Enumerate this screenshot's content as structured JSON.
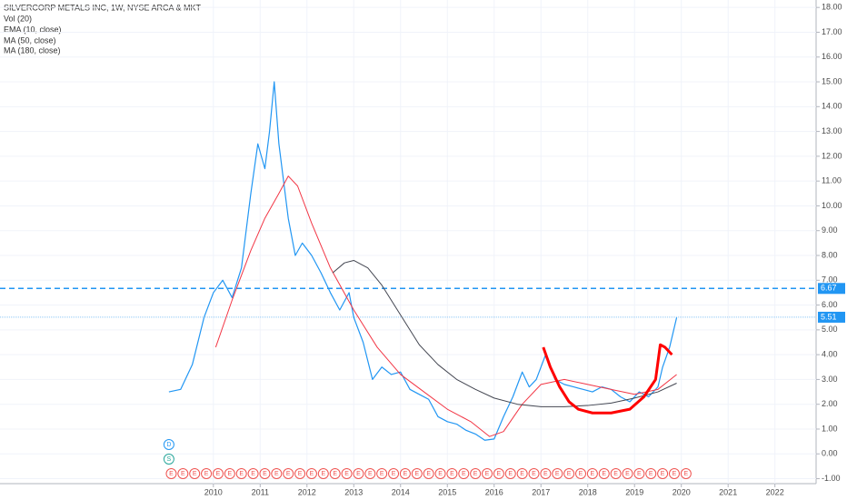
{
  "chart_data": {
    "type": "line",
    "title": "SILVERCORP METALS INC, 1W, NYSE ARCA & MKT",
    "volume_label": "Vol (20)",
    "xlim": [
      2005.44,
      2022.88
    ],
    "xticks": [
      2010,
      2011,
      2012,
      2013,
      2014,
      2015,
      2016,
      2017,
      2018,
      2019,
      2020,
      2021,
      2022
    ],
    "ylim": [
      -1.2,
      18.3
    ],
    "yticks": [
      {
        "value": -1,
        "label": "-1.00"
      },
      {
        "value": 0,
        "label": "0.00"
      },
      {
        "value": 1,
        "label": "1.00"
      },
      {
        "value": 2,
        "label": "2.00"
      },
      {
        "value": 3,
        "label": "3.00"
      },
      {
        "value": 4,
        "label": "4.00"
      },
      {
        "value": 5,
        "label": "5.00"
      },
      {
        "value": 6,
        "label": "6.00"
      },
      {
        "value": 7,
        "label": "7.00"
      },
      {
        "value": 8,
        "label": "8.00"
      },
      {
        "value": 9,
        "label": "9.00"
      },
      {
        "value": 10,
        "label": "10.00"
      },
      {
        "value": 11,
        "label": "11.00"
      },
      {
        "value": 12,
        "label": "12.00"
      },
      {
        "value": 13,
        "label": "13.00"
      },
      {
        "value": 14,
        "label": "14.00"
      },
      {
        "value": 15,
        "label": "15.00"
      },
      {
        "value": 16,
        "label": "16.00"
      },
      {
        "value": 17,
        "label": "17.00"
      },
      {
        "value": 18,
        "label": "18.00"
      }
    ],
    "grid": true,
    "series": [
      {
        "name": "EMA (10, close)",
        "color": "#2196f3",
        "x": [
          2009.05,
          2009.3,
          2009.55,
          2009.8,
          2010.0,
          2010.2,
          2010.4,
          2010.6,
          2010.8,
          2010.95,
          2011.1,
          2011.2,
          2011.3,
          2011.4,
          2011.5,
          2011.6,
          2011.75,
          2011.9,
          2012.1,
          2012.3,
          2012.5,
          2012.7,
          2012.9,
          2013.0,
          2013.2,
          2013.4,
          2013.6,
          2013.8,
          2014.0,
          2014.2,
          2014.4,
          2014.6,
          2014.8,
          2015.0,
          2015.2,
          2015.4,
          2015.6,
          2015.8,
          2016.0,
          2016.2,
          2016.4,
          2016.6,
          2016.75,
          2016.9,
          2017.1,
          2017.3,
          2017.5,
          2017.7,
          2017.9,
          2018.1,
          2018.3,
          2018.5,
          2018.7,
          2018.9,
          2019.1,
          2019.3,
          2019.5,
          2019.6,
          2019.75,
          2019.9
        ],
        "values": [
          2.5,
          2.6,
          3.6,
          5.5,
          6.5,
          7.0,
          6.3,
          7.5,
          10.5,
          12.5,
          11.5,
          13.0,
          15.0,
          12.5,
          11.0,
          9.5,
          8.0,
          8.5,
          8.0,
          7.3,
          6.5,
          5.8,
          6.5,
          5.5,
          4.5,
          3.0,
          3.5,
          3.2,
          3.3,
          2.6,
          2.4,
          2.2,
          1.5,
          1.3,
          1.2,
          0.95,
          0.8,
          0.55,
          0.6,
          1.5,
          2.3,
          3.3,
          2.7,
          3.0,
          4.0,
          3.0,
          2.8,
          2.7,
          2.6,
          2.5,
          2.7,
          2.6,
          2.3,
          2.1,
          2.5,
          2.3,
          2.7,
          3.5,
          4.3,
          5.5
        ]
      },
      {
        "name": "MA (50, close)",
        "color": "#f23645",
        "x": [
          2010.05,
          2010.4,
          2010.8,
          2011.1,
          2011.4,
          2011.6,
          2011.8,
          2012.1,
          2012.5,
          2013.0,
          2013.5,
          2014.0,
          2014.5,
          2015.0,
          2015.5,
          2015.9,
          2016.2,
          2016.6,
          2017.0,
          2017.5,
          2018.0,
          2018.5,
          2019.0,
          2019.5,
          2019.9
        ],
        "values": [
          4.3,
          6.2,
          8.2,
          9.5,
          10.5,
          11.2,
          10.8,
          9.3,
          7.5,
          5.8,
          4.3,
          3.2,
          2.5,
          1.8,
          1.3,
          0.7,
          0.9,
          2.0,
          2.8,
          3.0,
          2.8,
          2.6,
          2.4,
          2.6,
          3.2
        ]
      },
      {
        "name": "MA (180, close)",
        "color": "#434651",
        "x": [
          2012.55,
          2012.8,
          2013.0,
          2013.3,
          2013.6,
          2014.0,
          2014.4,
          2014.8,
          2015.2,
          2015.6,
          2016.0,
          2016.5,
          2017.0,
          2017.5,
          2018.0,
          2018.5,
          2019.0,
          2019.5,
          2019.9
        ],
        "values": [
          7.3,
          7.7,
          7.8,
          7.5,
          6.8,
          5.6,
          4.4,
          3.6,
          3.0,
          2.6,
          2.25,
          2.0,
          1.9,
          1.9,
          1.95,
          2.05,
          2.25,
          2.5,
          2.85
        ]
      }
    ],
    "drawing": {
      "color": "#ff0000",
      "x": [
        2017.05,
        2017.2,
        2017.4,
        2017.6,
        2017.8,
        2018.1,
        2018.5,
        2018.9,
        2019.2,
        2019.45,
        2019.55,
        2019.65,
        2019.8
      ],
      "values": [
        4.3,
        3.5,
        2.7,
        2.1,
        1.8,
        1.65,
        1.65,
        1.8,
        2.3,
        3.0,
        4.4,
        4.3,
        4.0
      ]
    },
    "price_lines": [
      6.67,
      5.51
    ],
    "earnings_marker": "E",
    "earnings_x": [
      2009.1,
      2009.35,
      2009.6,
      2009.85,
      2010.1,
      2010.35,
      2010.6,
      2010.85,
      2011.1,
      2011.35,
      2011.6,
      2011.85,
      2012.1,
      2012.35,
      2012.6,
      2012.85,
      2013.1,
      2013.35,
      2013.6,
      2013.85,
      2014.1,
      2014.35,
      2014.6,
      2014.85,
      2015.1,
      2015.35,
      2015.6,
      2015.85,
      2016.1,
      2016.35,
      2016.6,
      2016.85,
      2017.1,
      2017.35,
      2017.6,
      2017.85,
      2018.1,
      2018.35,
      2018.6,
      2018.85,
      2019.1,
      2019.35,
      2019.6,
      2019.85,
      2020.1
    ],
    "dividend_marker": "D",
    "split_marker": "S",
    "event_x": 2009.05
  }
}
